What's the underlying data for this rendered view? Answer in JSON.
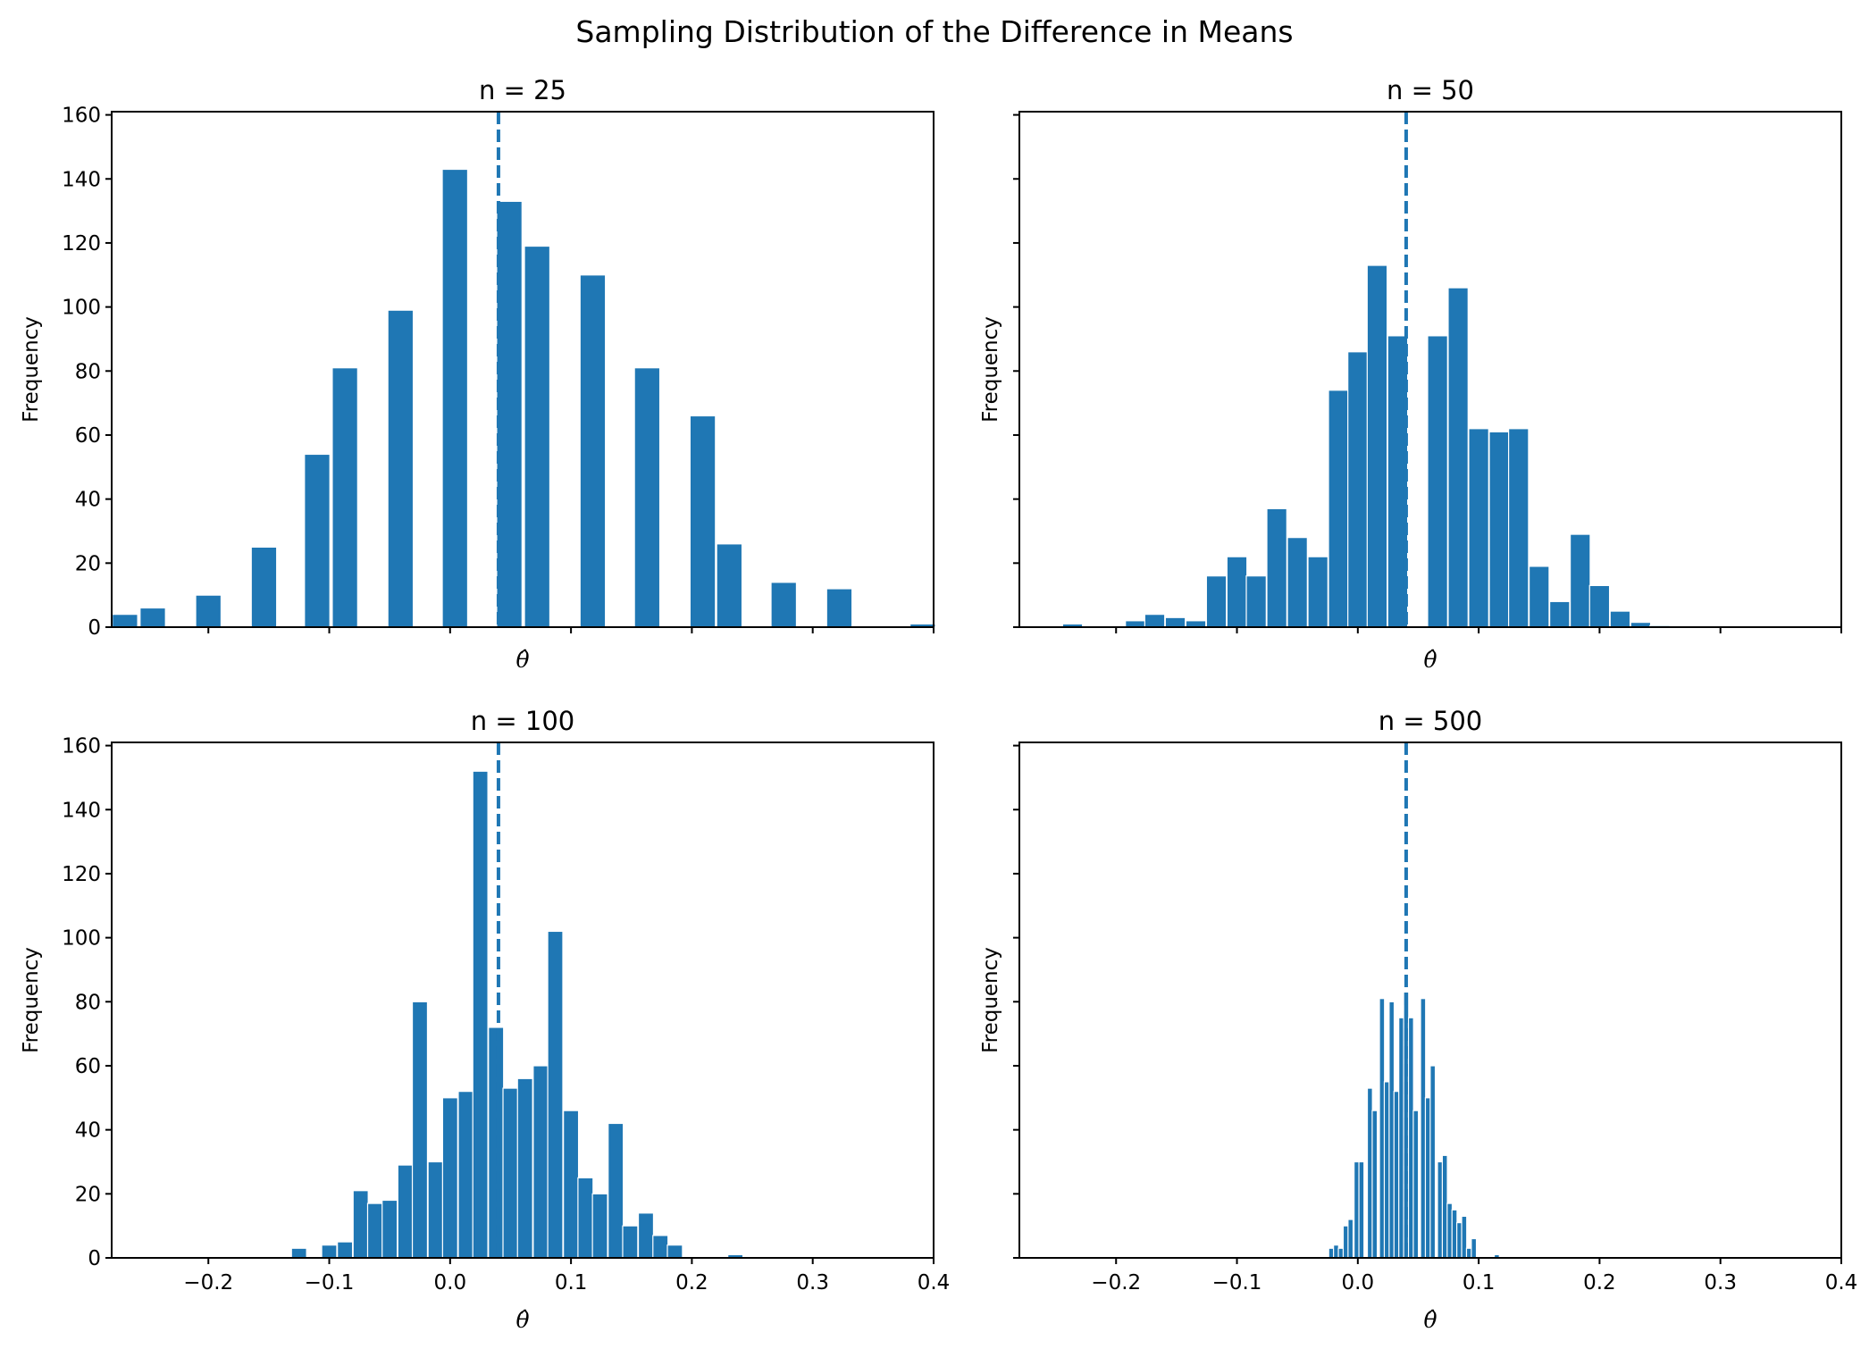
{
  "chart_data": {
    "type": "bar",
    "title": "Sampling Distribution of the Difference in Means",
    "bar_color": "#1f77b4",
    "bar_edge_color": "#ffffff",
    "reference_line": {
      "style": "dashed",
      "x": 0.04,
      "color": "#1f77b4"
    },
    "shared_x": true,
    "shared_y": true,
    "xlim": [
      -0.28,
      0.4
    ],
    "ylim": [
      0,
      161
    ],
    "x_ticks": [
      -0.2,
      -0.1,
      0.0,
      0.1,
      0.2,
      0.3,
      0.4
    ],
    "x_tick_labels": [
      "−0.2",
      "−0.1",
      "0.0",
      "0.1",
      "0.2",
      "0.3",
      "0.4"
    ],
    "y_ticks": [
      0,
      20,
      40,
      60,
      80,
      100,
      120,
      140,
      160
    ],
    "y_tick_labels": [
      "0",
      "20",
      "40",
      "60",
      "80",
      "100",
      "120",
      "140",
      "160"
    ],
    "xlabel": "θ̂",
    "ylabel": "Frequency",
    "grid": false,
    "panels": [
      {
        "title": "n = 25",
        "position": "top-left",
        "show_x_tick_labels": false,
        "show_y_tick_labels": true,
        "bin_width": 0.021,
        "bins": [
          {
            "x": -0.269,
            "count": 4
          },
          {
            "x": -0.246,
            "count": 6
          },
          {
            "x": -0.2,
            "count": 10
          },
          {
            "x": -0.154,
            "count": 25
          },
          {
            "x": -0.11,
            "count": 54
          },
          {
            "x": -0.087,
            "count": 81
          },
          {
            "x": -0.041,
            "count": 99
          },
          {
            "x": 0.004,
            "count": 143
          },
          {
            "x": 0.049,
            "count": 133
          },
          {
            "x": 0.072,
            "count": 119
          },
          {
            "x": 0.118,
            "count": 110
          },
          {
            "x": 0.163,
            "count": 81
          },
          {
            "x": 0.209,
            "count": 66
          },
          {
            "x": 0.231,
            "count": 26
          },
          {
            "x": 0.276,
            "count": 14
          },
          {
            "x": 0.322,
            "count": 12
          },
          {
            "x": 0.391,
            "count": 1
          }
        ]
      },
      {
        "title": "n = 50",
        "position": "top-right",
        "show_x_tick_labels": false,
        "show_y_tick_labels": false,
        "bin_width": 0.0165,
        "bins": [
          {
            "x": -0.236,
            "count": 1
          },
          {
            "x": -0.184,
            "count": 2
          },
          {
            "x": -0.168,
            "count": 4
          },
          {
            "x": -0.151,
            "count": 3
          },
          {
            "x": -0.134,
            "count": 2
          },
          {
            "x": -0.117,
            "count": 16
          },
          {
            "x": -0.1,
            "count": 22
          },
          {
            "x": -0.084,
            "count": 16
          },
          {
            "x": -0.067,
            "count": 37
          },
          {
            "x": -0.05,
            "count": 28
          },
          {
            "x": -0.033,
            "count": 22
          },
          {
            "x": -0.016,
            "count": 74
          },
          {
            "x": 0.0,
            "count": 86
          },
          {
            "x": 0.016,
            "count": 113
          },
          {
            "x": 0.033,
            "count": 91
          },
          {
            "x": 0.066,
            "count": 91
          },
          {
            "x": 0.083,
            "count": 106
          },
          {
            "x": 0.1,
            "count": 62
          },
          {
            "x": 0.117,
            "count": 61
          },
          {
            "x": 0.133,
            "count": 62
          },
          {
            "x": 0.15,
            "count": 19
          },
          {
            "x": 0.167,
            "count": 8
          },
          {
            "x": 0.184,
            "count": 29
          },
          {
            "x": 0.2,
            "count": 13
          },
          {
            "x": 0.217,
            "count": 5
          },
          {
            "x": 0.234,
            "count": 1.5
          },
          {
            "x": 0.25,
            "count": 0.5
          }
        ]
      },
      {
        "title": "n = 100",
        "position": "bottom-left",
        "show_x_tick_labels": true,
        "show_y_tick_labels": true,
        "bin_width": 0.0125,
        "bins": [
          {
            "x": -0.125,
            "count": 3
          },
          {
            "x": -0.1,
            "count": 4
          },
          {
            "x": -0.087,
            "count": 5
          },
          {
            "x": -0.074,
            "count": 21
          },
          {
            "x": -0.062,
            "count": 17
          },
          {
            "x": -0.05,
            "count": 18
          },
          {
            "x": -0.037,
            "count": 29
          },
          {
            "x": -0.025,
            "count": 80
          },
          {
            "x": -0.012,
            "count": 30
          },
          {
            "x": 0.0,
            "count": 50
          },
          {
            "x": 0.013,
            "count": 52
          },
          {
            "x": 0.025,
            "count": 152
          },
          {
            "x": 0.038,
            "count": 72
          },
          {
            "x": 0.05,
            "count": 53
          },
          {
            "x": 0.062,
            "count": 56
          },
          {
            "x": 0.075,
            "count": 60
          },
          {
            "x": 0.087,
            "count": 102
          },
          {
            "x": 0.1,
            "count": 46
          },
          {
            "x": 0.112,
            "count": 25
          },
          {
            "x": 0.124,
            "count": 20
          },
          {
            "x": 0.137,
            "count": 42
          },
          {
            "x": 0.149,
            "count": 10
          },
          {
            "x": 0.162,
            "count": 14
          },
          {
            "x": 0.174,
            "count": 7
          },
          {
            "x": 0.186,
            "count": 4
          },
          {
            "x": 0.236,
            "count": 1
          }
        ]
      },
      {
        "title": "n = 500",
        "position": "bottom-right",
        "show_x_tick_labels": true,
        "show_y_tick_labels": false,
        "bin_width": 0.0042,
        "bins": [
          {
            "x": -0.022,
            "count": 3
          },
          {
            "x": -0.018,
            "count": 4
          },
          {
            "x": -0.014,
            "count": 3
          },
          {
            "x": -0.01,
            "count": 10
          },
          {
            "x": -0.006,
            "count": 12
          },
          {
            "x": -0.001,
            "count": 30
          },
          {
            "x": 0.003,
            "count": 30
          },
          {
            "x": 0.01,
            "count": 53
          },
          {
            "x": 0.014,
            "count": 46
          },
          {
            "x": 0.02,
            "count": 81
          },
          {
            "x": 0.024,
            "count": 55
          },
          {
            "x": 0.028,
            "count": 80
          },
          {
            "x": 0.032,
            "count": 52
          },
          {
            "x": 0.036,
            "count": 75
          },
          {
            "x": 0.04,
            "count": 83
          },
          {
            "x": 0.044,
            "count": 75
          },
          {
            "x": 0.048,
            "count": 46
          },
          {
            "x": 0.054,
            "count": 81
          },
          {
            "x": 0.058,
            "count": 50
          },
          {
            "x": 0.062,
            "count": 60
          },
          {
            "x": 0.068,
            "count": 30
          },
          {
            "x": 0.072,
            "count": 32
          },
          {
            "x": 0.076,
            "count": 17
          },
          {
            "x": 0.08,
            "count": 15
          },
          {
            "x": 0.084,
            "count": 11
          },
          {
            "x": 0.088,
            "count": 13
          },
          {
            "x": 0.092,
            "count": 3
          },
          {
            "x": 0.096,
            "count": 6
          },
          {
            "x": 0.115,
            "count": 1
          }
        ]
      }
    ]
  }
}
